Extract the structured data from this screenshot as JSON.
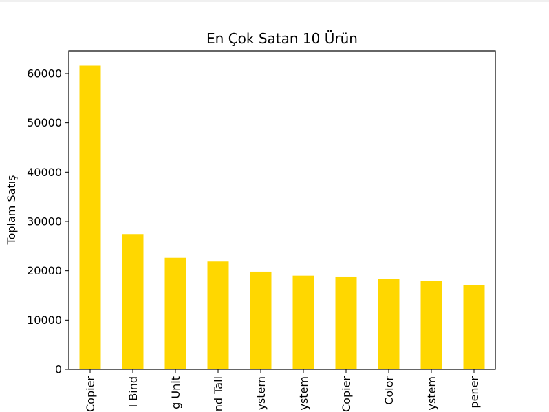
{
  "chart_data": {
    "type": "bar",
    "title": "En Çok Satan 10 Ürün",
    "xlabel": "",
    "ylabel": "Toplam Satış",
    "categories": [
      "Copier",
      "l Bind",
      "g Unit",
      "nd Tall",
      "ystem",
      "ystem",
      "Copier",
      "Color",
      "ystem",
      "pener"
    ],
    "values": [
      61600,
      27450,
      22640,
      21870,
      19820,
      19020,
      18840,
      18370,
      17970,
      17030
    ],
    "ylim": [
      0,
      64600
    ],
    "yticks": [
      0,
      10000,
      20000,
      30000,
      40000,
      50000,
      60000
    ],
    "bar_color": "#ffd700",
    "grid": false,
    "legend": "none"
  }
}
